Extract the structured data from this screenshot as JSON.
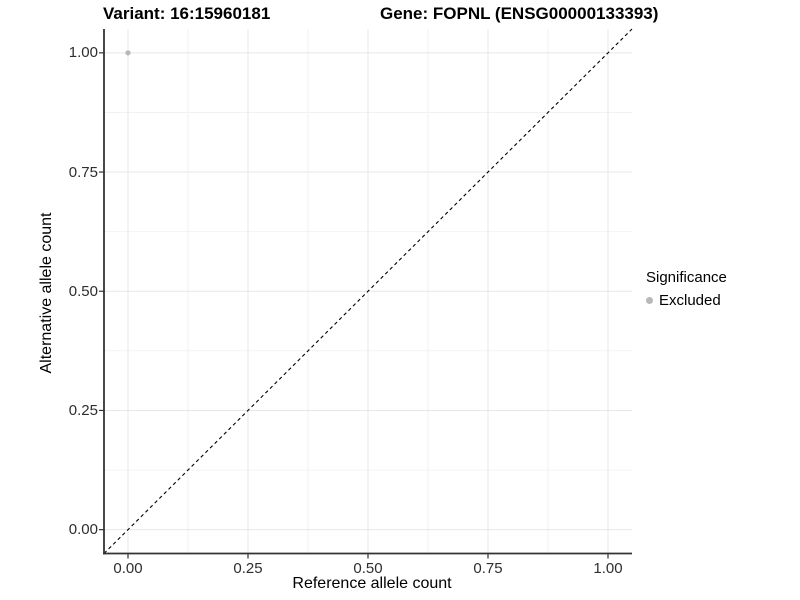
{
  "chart_data": {
    "type": "scatter",
    "title_left": "Variant: 16:15960181",
    "title_right": "Gene: FOPNL (ENSG00000133393)",
    "xlabel": "Reference allele count",
    "ylabel": "Alternative allele count",
    "xlim": [
      -0.05,
      1.05
    ],
    "ylim": [
      -0.05,
      1.05
    ],
    "x_ticks": [
      0,
      0.25,
      0.5,
      0.75,
      1
    ],
    "y_ticks": [
      0,
      0.25,
      0.5,
      0.75,
      1
    ],
    "x_tick_labels": [
      "0.00",
      "0.25",
      "0.50",
      "0.75",
      "1.00"
    ],
    "y_tick_labels": [
      "0.00",
      "0.25",
      "0.50",
      "0.75",
      "1.00"
    ],
    "x_minor_ticks": [
      0.125,
      0.375,
      0.625,
      0.875
    ],
    "y_minor_ticks": [
      0.125,
      0.375,
      0.625,
      0.875
    ],
    "grid": "major+minor",
    "points": [
      {
        "x": 0.0,
        "y": 1.0,
        "series": "Excluded"
      }
    ],
    "reference_line": {
      "style": "dashed",
      "x1": -0.05,
      "y1": -0.05,
      "x2": 1.05,
      "y2": 1.05
    },
    "legend": {
      "position": "right",
      "title": "Significance",
      "items": [
        {
          "label": "Excluded",
          "color": "#b8b8b8"
        }
      ]
    },
    "colors": {
      "point_excluded": "#b8b8b8",
      "grid_major": "#e7e7e7",
      "grid_minor": "#f1f1f1",
      "axis_line": "#333333",
      "reference_line": "#000000",
      "title_text": "#000000",
      "tick_text": "#2e2e2e"
    }
  }
}
